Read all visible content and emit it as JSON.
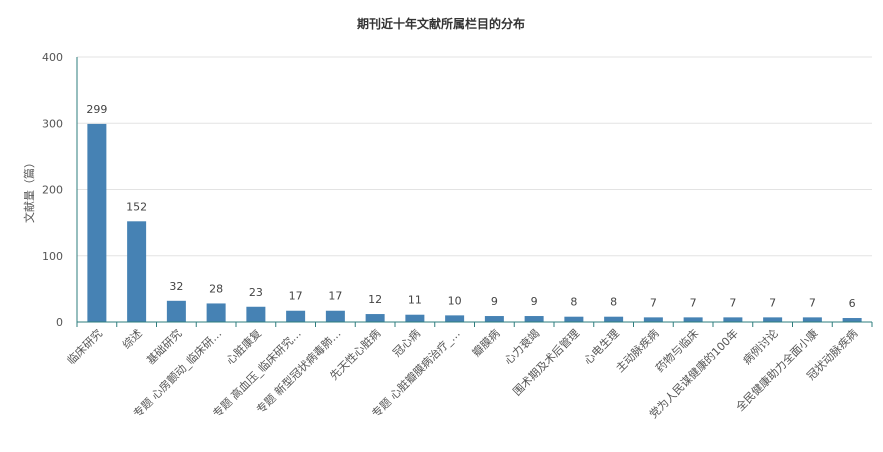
{
  "chart_data": {
    "type": "bar",
    "title": "期刊近十年文献所属栏目的分布",
    "ylabel": "文献量（篇）",
    "xlabel": "",
    "ylim": [
      0,
      400
    ],
    "yticks": [
      0,
      100,
      200,
      300,
      400
    ],
    "grid": true,
    "legend": "none",
    "bar_color": "#4682b4",
    "categories": [
      "临床研究",
      "综述",
      "基础研究",
      "专题 心房颤动_临床研…",
      "心脏康复",
      "专题 高血压_临床研究…",
      "专题 新型冠状病毒肺…",
      "先天性心脏病",
      "冠心病",
      "专题 心脏瓣膜病治疗_…",
      "瓣膜病",
      "心力衰竭",
      "围术期及术后管理",
      "心电生理",
      "主动脉疾病",
      "药物与临床",
      "党为人民谋健康的100年",
      "病例讨论",
      "全民健康助力全面小康",
      "冠状动脉疾病"
    ],
    "values": [
      299,
      152,
      32,
      28,
      23,
      17,
      17,
      12,
      11,
      10,
      9,
      9,
      8,
      8,
      7,
      7,
      7,
      7,
      7,
      6
    ]
  }
}
